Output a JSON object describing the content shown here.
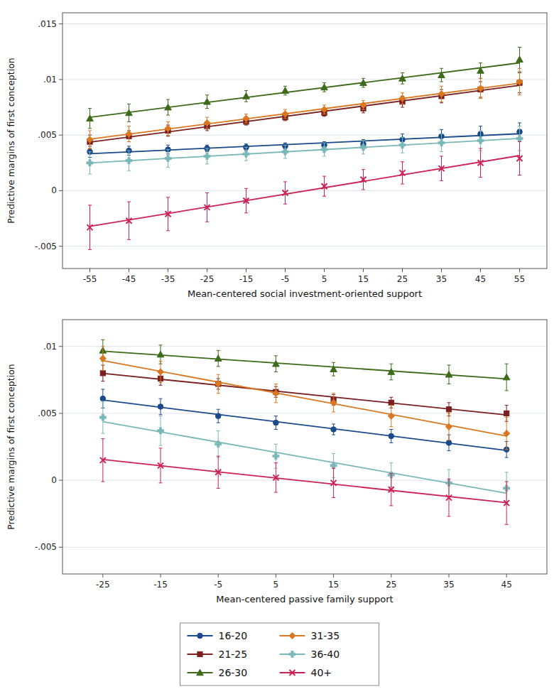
{
  "chart_data": [
    {
      "type": "scatter",
      "x_label": "Mean-centered social investment-oriented support",
      "y_label": "Predictive margins of first conception",
      "xlim": [
        -62,
        62
      ],
      "ylim": [
        -0.007,
        0.016
      ],
      "xticks": [
        -55,
        -45,
        -35,
        -25,
        -15,
        -5,
        5,
        15,
        25,
        35,
        45,
        55
      ],
      "yticks": [
        {
          "value": -0.005,
          "label": "-.005"
        },
        0,
        {
          "value": 0.005,
          "label": ".005"
        },
        {
          "value": 0.01,
          "label": ".01"
        },
        {
          "value": 0.015,
          "label": ".015"
        }
      ],
      "grid": true,
      "series": [
        {
          "name": "16-20",
          "color": "#1a4a8a",
          "marker": "circle",
          "x": [
            -55,
            -45,
            -35,
            -25,
            -15,
            -5,
            5,
            15,
            25,
            35,
            45,
            55
          ],
          "values": [
            0.0035,
            0.0036,
            0.0037,
            0.0038,
            0.0039,
            0.004,
            0.0041,
            0.0042,
            0.0046,
            0.0049,
            0.0051,
            0.0053
          ],
          "error_lo": [
            0.0005,
            0.0004,
            0.0004,
            0.0003,
            0.0003,
            0.0003,
            0.0003,
            0.0004,
            0.0005,
            0.0006,
            0.0007,
            0.0008
          ],
          "error_hi": [
            0.0005,
            0.0004,
            0.0004,
            0.0003,
            0.0003,
            0.0003,
            0.0003,
            0.0004,
            0.0005,
            0.0006,
            0.0007,
            0.0008
          ],
          "trend_x": [
            -55,
            55
          ],
          "trend_values": [
            0.003326923,
            0.005123077
          ]
        },
        {
          "name": "21-25",
          "color": "#7b2020",
          "marker": "square",
          "x": [
            -55,
            -45,
            -35,
            -25,
            -15,
            -5,
            5,
            15,
            25,
            35,
            45,
            55
          ],
          "values": [
            0.0044,
            0.0049,
            0.0054,
            0.0058,
            0.0062,
            0.0066,
            0.007,
            0.0074,
            0.008,
            0.0085,
            0.0091,
            0.0097
          ],
          "error_lo": [
            0.0006,
            0.0005,
            0.0005,
            0.0004,
            0.0003,
            0.0003,
            0.0003,
            0.0004,
            0.0005,
            0.0006,
            0.0007,
            0.0009
          ],
          "error_hi": [
            0.0006,
            0.0005,
            0.0005,
            0.0004,
            0.0003,
            0.0003,
            0.0003,
            0.0004,
            0.0005,
            0.0006,
            0.0007,
            0.0009
          ],
          "trend_x": [
            -55,
            55
          ],
          "trend_values": [
            0.004362821,
            0.009470513
          ]
        },
        {
          "name": "26-30",
          "color": "#3d6b1a",
          "marker": "triangle",
          "x": [
            -55,
            -45,
            -35,
            -25,
            -15,
            -5,
            5,
            15,
            25,
            35,
            45,
            55
          ],
          "values": [
            0.0065,
            0.007,
            0.0075,
            0.008,
            0.0085,
            0.009,
            0.0093,
            0.0097,
            0.0101,
            0.0104,
            0.0108,
            0.0118
          ],
          "error_lo": [
            0.0009,
            0.0008,
            0.0007,
            0.0006,
            0.0005,
            0.0004,
            0.0004,
            0.0004,
            0.0005,
            0.0006,
            0.0007,
            0.0011
          ],
          "error_hi": [
            0.0009,
            0.0008,
            0.0007,
            0.0006,
            0.0005,
            0.0004,
            0.0004,
            0.0004,
            0.0005,
            0.0006,
            0.0007,
            0.0011
          ],
          "trend_x": [
            -55,
            55
          ],
          "trend_values": [
            0.006603846,
            0.011496154
          ]
        },
        {
          "name": "31-35",
          "color": "#d97820",
          "marker": "diamond",
          "x": [
            -55,
            -45,
            -35,
            -25,
            -15,
            -5,
            5,
            15,
            25,
            35,
            45,
            55
          ],
          "values": [
            0.0046,
            0.0051,
            0.0056,
            0.0061,
            0.0065,
            0.0069,
            0.0073,
            0.0077,
            0.0083,
            0.0087,
            0.0092,
            0.0098
          ],
          "error_lo": [
            0.0008,
            0.0007,
            0.0006,
            0.0005,
            0.0004,
            0.0004,
            0.0004,
            0.0004,
            0.0005,
            0.0007,
            0.0009,
            0.0012
          ],
          "error_hi": [
            0.0008,
            0.0007,
            0.0006,
            0.0005,
            0.0004,
            0.0004,
            0.0004,
            0.0004,
            0.0005,
            0.0007,
            0.0009,
            0.0012
          ],
          "trend_x": [
            -55,
            55
          ],
          "trend_values": [
            0.004634615,
            0.009665385
          ]
        },
        {
          "name": "36-40",
          "color": "#7ab8b8",
          "marker": "plus",
          "x": [
            -55,
            -45,
            -35,
            -25,
            -15,
            -5,
            5,
            15,
            25,
            35,
            45,
            55
          ],
          "values": [
            0.0025,
            0.0027,
            0.0029,
            0.0031,
            0.0033,
            0.0035,
            0.0037,
            0.0039,
            0.0041,
            0.0043,
            0.0045,
            0.0047
          ],
          "error_lo": [
            0.001,
            0.0009,
            0.0008,
            0.0007,
            0.0006,
            0.0006,
            0.0006,
            0.0006,
            0.0007,
            0.0008,
            0.0009,
            0.0011
          ],
          "error_hi": [
            0.001,
            0.0009,
            0.0008,
            0.0007,
            0.0006,
            0.0006,
            0.0006,
            0.0006,
            0.0007,
            0.0008,
            0.0009,
            0.0011
          ],
          "trend_x": [
            -55,
            55
          ],
          "trend_values": [
            0.0025,
            0.0047
          ]
        },
        {
          "name": "40+",
          "color": "#cc2255",
          "marker": "x",
          "x": [
            -55,
            -45,
            -35,
            -25,
            -15,
            -5,
            5,
            15,
            25,
            35,
            45,
            55
          ],
          "values": [
            -0.0033,
            -0.0027,
            -0.0021,
            -0.0015,
            -0.0009,
            -0.0002,
            0.0004,
            0.001,
            0.0016,
            0.002,
            0.0025,
            0.0029
          ],
          "error_lo": [
            0.002,
            0.0017,
            0.0015,
            0.0013,
            0.0011,
            0.001,
            0.0009,
            0.0009,
            0.001,
            0.0011,
            0.0013,
            0.0015
          ],
          "error_hi": [
            0.002,
            0.0017,
            0.0015,
            0.0013,
            0.0011,
            0.001,
            0.0009,
            0.0009,
            0.001,
            0.0011,
            0.0013,
            0.0015
          ],
          "trend_x": [
            -55,
            55
          ],
          "trend_values": [
            -0.003207692,
            0.003157692
          ]
        }
      ]
    },
    {
      "type": "scatter",
      "x_label": "Mean-centered passive family support",
      "y_label": "Predictive margins of first conception",
      "xlim": [
        -32,
        52
      ],
      "ylim": [
        -0.007,
        0.012
      ],
      "xticks": [
        -25,
        -15,
        -5,
        5,
        15,
        25,
        35,
        45
      ],
      "yticks": [
        {
          "value": -0.005,
          "label": "-.005"
        },
        0,
        {
          "value": 0.005,
          "label": ".005"
        },
        {
          "value": 0.01,
          "label": ".01"
        }
      ],
      "grid": true,
      "legend": "bottom",
      "series": [
        {
          "name": "16-20",
          "color": "#1a4a8a",
          "marker": "circle",
          "x": [
            -25,
            -15,
            -5,
            5,
            15,
            25,
            35,
            45
          ],
          "values": [
            0.0061,
            0.0055,
            0.0048,
            0.0043,
            0.0038,
            0.0033,
            0.0028,
            0.0023
          ],
          "error_lo": [
            0.0007,
            0.0006,
            0.0005,
            0.0005,
            0.0004,
            0.0005,
            0.0006,
            0.0006
          ],
          "error_hi": [
            0.0007,
            0.0006,
            0.0005,
            0.0005,
            0.0004,
            0.0005,
            0.0006,
            0.0006
          ],
          "trend_x": [
            -25,
            45
          ],
          "trend_values": [
            0.005991667,
            0.002233333
          ]
        },
        {
          "name": "21-25",
          "color": "#7b2020",
          "marker": "square",
          "x": [
            -25,
            -15,
            -5,
            5,
            15,
            25,
            35,
            45
          ],
          "values": [
            0.008,
            0.0076,
            0.0072,
            0.0066,
            0.006,
            0.0058,
            0.0053,
            0.005
          ],
          "error_lo": [
            0.0006,
            0.0005,
            0.0004,
            0.0004,
            0.0004,
            0.0004,
            0.0005,
            0.0006
          ],
          "error_hi": [
            0.0006,
            0.0005,
            0.0004,
            0.0004,
            0.0004,
            0.0004,
            0.0005,
            0.0006
          ],
          "trend_x": [
            -25,
            45
          ],
          "trend_values": [
            0.007991667,
            0.004883333
          ]
        },
        {
          "name": "26-30",
          "color": "#3d6b1a",
          "marker": "triangle",
          "x": [
            -25,
            -15,
            -5,
            5,
            15,
            25,
            35,
            45
          ],
          "values": [
            0.0097,
            0.0094,
            0.0091,
            0.0087,
            0.0083,
            0.0081,
            0.0079,
            0.0077
          ],
          "error_lo": [
            0.0008,
            0.0007,
            0.0006,
            0.0006,
            0.0005,
            0.0006,
            0.0007,
            0.001
          ],
          "error_hi": [
            0.0008,
            0.0007,
            0.0006,
            0.0006,
            0.0005,
            0.0006,
            0.0007,
            0.001
          ],
          "trend_x": [
            -25,
            45
          ],
          "trend_values": [
            0.00965,
            0.007575
          ]
        },
        {
          "name": "31-35",
          "color": "#d97820",
          "marker": "diamond",
          "x": [
            -25,
            -15,
            -5,
            5,
            15,
            25,
            35,
            45
          ],
          "values": [
            0.0091,
            0.0081,
            0.0072,
            0.0065,
            0.0058,
            0.0048,
            0.004,
            0.0035
          ],
          "error_lo": [
            0.0009,
            0.0008,
            0.0007,
            0.0007,
            0.0007,
            0.0008,
            0.001,
            0.0012
          ],
          "error_hi": [
            0.0009,
            0.0008,
            0.0007,
            0.0007,
            0.0007,
            0.0008,
            0.001,
            0.0012
          ],
          "trend_x": [
            -25,
            45
          ],
          "trend_values": [
            0.008941667,
            0.003308333
          ]
        },
        {
          "name": "36-40",
          "color": "#7ab8b8",
          "marker": "plus",
          "x": [
            -25,
            -15,
            -5,
            5,
            15,
            25,
            35,
            45
          ],
          "values": [
            0.0047,
            0.0037,
            0.0027,
            0.0018,
            0.0011,
            0.0004,
            -0.0002,
            -0.0006
          ],
          "error_lo": [
            0.0012,
            0.0011,
            0.001,
            0.0009,
            0.0009,
            0.0009,
            0.001,
            0.0012
          ],
          "error_hi": [
            0.0012,
            0.0011,
            0.001,
            0.0009,
            0.0009,
            0.0009,
            0.001,
            0.0012
          ],
          "trend_x": [
            -25,
            45
          ],
          "trend_values": [
            0.004375,
            -0.000975
          ]
        },
        {
          "name": "40+",
          "color": "#cc2255",
          "marker": "x",
          "x": [
            -25,
            -15,
            -5,
            5,
            15,
            25,
            35,
            45
          ],
          "values": [
            0.0015,
            0.0011,
            0.0006,
            0.0002,
            -0.0002,
            -0.0007,
            -0.0013,
            -0.0017
          ],
          "error_lo": [
            0.0016,
            0.0013,
            0.0012,
            0.0011,
            0.0011,
            0.0012,
            0.0014,
            0.0016
          ],
          "error_hi": [
            0.0016,
            0.0013,
            0.0012,
            0.0011,
            0.0011,
            0.0012,
            0.0014,
            0.0016
          ],
          "trend_x": [
            -25,
            45
          ],
          "trend_values": [
            0.00155,
            -0.001675
          ]
        }
      ]
    }
  ]
}
